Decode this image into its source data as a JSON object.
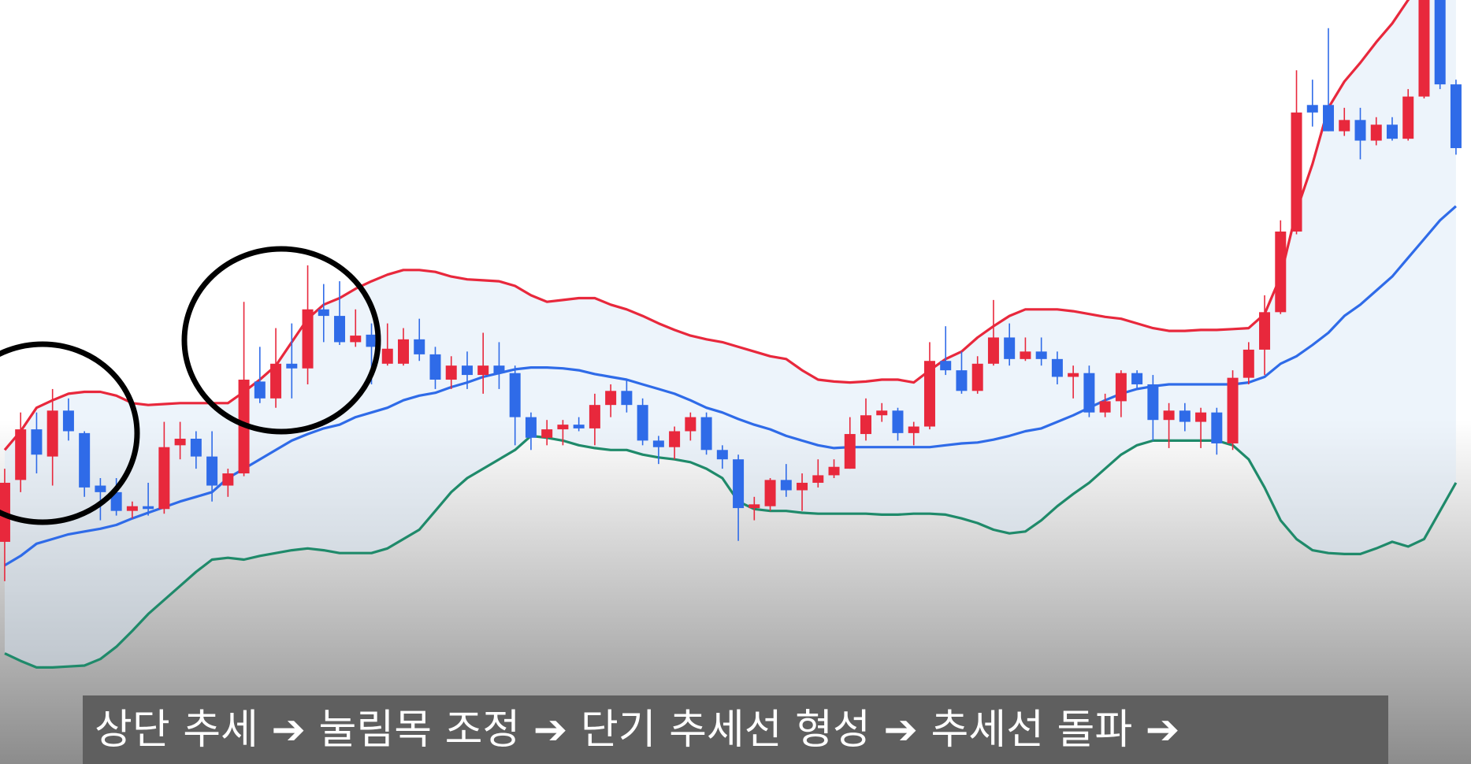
{
  "chart_data": {
    "type": "candlestick",
    "caption": "상단 추세 ➔ 눌림목 조정 ➔ 단기 추세선 형성 ➔ 추세선 돌파 ➔",
    "ylim": [
      0,
      815
    ],
    "up_color": "#e8283c",
    "down_color": "#2f6be8",
    "open": [
      237,
      303,
      357,
      328,
      377,
      353,
      297,
      290,
      270,
      275,
      272,
      340,
      347,
      328,
      297,
      310,
      408,
      390,
      427,
      422,
      485,
      478,
      450,
      458,
      427,
      427,
      453,
      437,
      410,
      425,
      415,
      425,
      417,
      370,
      348,
      357,
      362,
      358,
      383,
      398,
      383,
      345,
      338,
      355,
      370,
      335,
      325,
      273,
      275,
      303,
      292,
      300,
      308,
      315,
      352,
      372,
      377,
      353,
      360,
      430,
      420,
      398,
      427,
      455,
      432,
      440,
      432,
      413,
      417,
      375,
      387,
      417,
      405,
      367,
      377,
      365,
      375,
      342,
      412,
      442,
      482,
      568,
      703,
      703,
      675,
      687,
      665,
      682,
      667,
      712,
      830,
      725
    ],
    "high": [
      315,
      375,
      375,
      400,
      390,
      355,
      305,
      305,
      280,
      300,
      365,
      365,
      355,
      355,
      315,
      493,
      445,
      465,
      470,
      532,
      512,
      515,
      485,
      470,
      470,
      465,
      475,
      445,
      435,
      440,
      460,
      450,
      425,
      375,
      367,
      367,
      370,
      395,
      405,
      410,
      390,
      350,
      360,
      375,
      375,
      340,
      330,
      285,
      305,
      320,
      310,
      325,
      325,
      370,
      390,
      385,
      380,
      365,
      450,
      467,
      440,
      435,
      495,
      470,
      455,
      455,
      440,
      425,
      425,
      395,
      420,
      420,
      415,
      385,
      385,
      380,
      380,
      420,
      450,
      500,
      580,
      740,
      730,
      785,
      700,
      700,
      690,
      690,
      720,
      840,
      840,
      730
    ],
    "low": [
      195,
      290,
      310,
      297,
      345,
      285,
      260,
      265,
      262,
      265,
      267,
      325,
      315,
      280,
      285,
      307,
      385,
      380,
      390,
      405,
      450,
      447,
      445,
      405,
      425,
      425,
      430,
      400,
      400,
      400,
      395,
      400,
      340,
      335,
      340,
      340,
      355,
      340,
      370,
      375,
      340,
      320,
      325,
      345,
      330,
      315,
      238,
      260,
      270,
      285,
      270,
      295,
      305,
      315,
      345,
      365,
      345,
      340,
      357,
      415,
      395,
      395,
      425,
      425,
      430,
      425,
      405,
      390,
      370,
      370,
      370,
      400,
      345,
      337,
      355,
      337,
      330,
      335,
      405,
      415,
      480,
      565,
      680,
      675,
      670,
      645,
      660,
      665,
      665,
      710,
      720,
      650
    ],
    "close": [
      300,
      357,
      330,
      377,
      355,
      295,
      290,
      270,
      275,
      272,
      338,
      347,
      328,
      297,
      310,
      410,
      390,
      427,
      422,
      485,
      478,
      450,
      457,
      445,
      443,
      453,
      437,
      410,
      425,
      415,
      425,
      417,
      370,
      348,
      357,
      362,
      358,
      383,
      398,
      383,
      345,
      338,
      355,
      370,
      335,
      325,
      273,
      277,
      303,
      292,
      300,
      308,
      317,
      352,
      372,
      377,
      353,
      360,
      430,
      420,
      398,
      427,
      455,
      432,
      440,
      432,
      413,
      417,
      375,
      387,
      417,
      405,
      367,
      377,
      365,
      375,
      342,
      412,
      442,
      482,
      568,
      695,
      695,
      675,
      687,
      665,
      682,
      667,
      712,
      815,
      725,
      657
    ],
    "upper_band": {
      "color": "#e8283c",
      "values": [
        335,
        355,
        380,
        388,
        395,
        397,
        397,
        393,
        385,
        383,
        384,
        385,
        385,
        385,
        385,
        397,
        410,
        425,
        450,
        475,
        490,
        497,
        507,
        515,
        522,
        527,
        527,
        525,
        520,
        517,
        516,
        515,
        510,
        500,
        493,
        495,
        497,
        497,
        490,
        485,
        478,
        470,
        463,
        457,
        453,
        450,
        445,
        440,
        435,
        432,
        420,
        410,
        408,
        407,
        408,
        410,
        410,
        407,
        420,
        432,
        440,
        455,
        467,
        478,
        485,
        485,
        485,
        483,
        480,
        477,
        475,
        470,
        465,
        462,
        462,
        463,
        463,
        464,
        465,
        480,
        520,
        590,
        640,
        700,
        728,
        748,
        770,
        790,
        815,
        835,
        855,
        875
      ]
    },
    "middle_band": {
      "color": "#2f6be8",
      "values": [
        212,
        222,
        235,
        240,
        245,
        248,
        251,
        255,
        262,
        268,
        274,
        280,
        285,
        290,
        305,
        315,
        325,
        335,
        345,
        352,
        358,
        362,
        370,
        375,
        380,
        388,
        393,
        396,
        402,
        407,
        413,
        417,
        421,
        423,
        423,
        422,
        420,
        416,
        413,
        410,
        405,
        400,
        395,
        388,
        380,
        375,
        368,
        362,
        357,
        350,
        345,
        340,
        337,
        338,
        338,
        338,
        338,
        338,
        338,
        340,
        342,
        343,
        346,
        350,
        355,
        358,
        365,
        372,
        380,
        388,
        395,
        400,
        403,
        405,
        405,
        405,
        405,
        405,
        407,
        413,
        427,
        435,
        447,
        460,
        478,
        490,
        505,
        520,
        540,
        560,
        580,
        595
      ]
    },
    "lower_band": {
      "color": "#1f8a6a",
      "values": [
        118,
        110,
        103,
        103,
        104,
        105,
        112,
        125,
        142,
        160,
        175,
        190,
        205,
        218,
        220,
        218,
        222,
        225,
        228,
        230,
        228,
        225,
        225,
        225,
        230,
        240,
        250,
        270,
        290,
        305,
        315,
        325,
        335,
        350,
        348,
        345,
        340,
        337,
        335,
        335,
        330,
        327,
        325,
        322,
        315,
        305,
        280,
        272,
        270,
        270,
        268,
        267,
        267,
        267,
        267,
        266,
        266,
        267,
        267,
        266,
        262,
        257,
        250,
        246,
        248,
        260,
        275,
        288,
        300,
        315,
        330,
        340,
        345,
        345,
        345,
        345,
        345,
        340,
        325,
        295,
        260,
        240,
        228,
        225,
        224,
        224,
        230,
        237,
        232,
        240,
        270,
        300
      ]
    }
  }
}
